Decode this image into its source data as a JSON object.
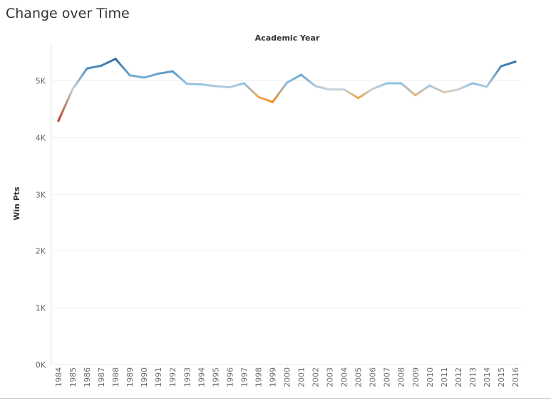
{
  "page": {
    "title": "Change over Time"
  },
  "chart_data": {
    "type": "line",
    "title": "Change over Time",
    "xlabel": "Academic Year",
    "ylabel": "Win Pts",
    "ylim": [
      0,
      5600
    ],
    "y_ticks": [
      0,
      1000,
      2000,
      3000,
      4000,
      5000
    ],
    "y_tick_labels": [
      "0K",
      "1K",
      "2K",
      "3K",
      "4K",
      "5K"
    ],
    "grid": true,
    "legend": "none",
    "color_scale": {
      "type": "diverging",
      "low_color": "#b5401b",
      "mid_low_color": "#f7941d",
      "neutral_color": "#d4d4d4",
      "mid_high_color": "#8dc3e4",
      "high_color": "#2e6da4"
    },
    "categories": [
      "1984",
      "1985",
      "1986",
      "1987",
      "1988",
      "1989",
      "1990",
      "1991",
      "1992",
      "1993",
      "1994",
      "1995",
      "1996",
      "1997",
      "1998",
      "1999",
      "2000",
      "2001",
      "2002",
      "2003",
      "2004",
      "2005",
      "2006",
      "2007",
      "2008",
      "2009",
      "2010",
      "2011",
      "2012",
      "2013",
      "2014",
      "2015",
      "2016"
    ],
    "series": [
      {
        "values": [
          4290,
          4850,
          5210,
          5260,
          5380,
          5090,
          5050,
          5120,
          5160,
          4940,
          4930,
          4900,
          4880,
          4950,
          4710,
          4620,
          4960,
          5100,
          4900,
          4840,
          4840,
          4690,
          4850,
          4950,
          4950,
          4740,
          4910,
          4790,
          4840,
          4950,
          4890,
          5250,
          5330
        ]
      }
    ]
  }
}
